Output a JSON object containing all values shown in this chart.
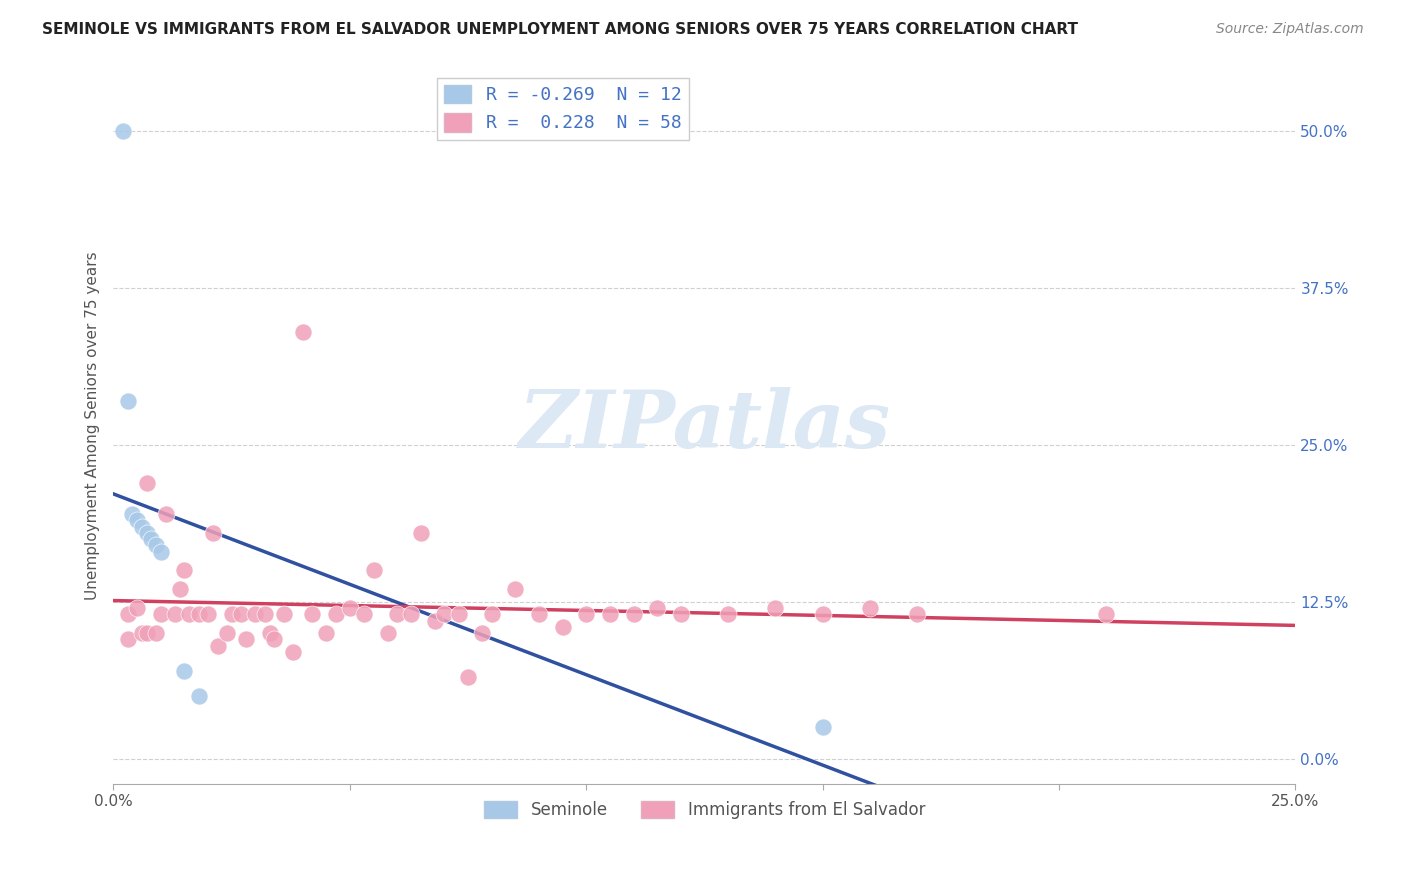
{
  "title": "SEMINOLE VS IMMIGRANTS FROM EL SALVADOR UNEMPLOYMENT AMONG SENIORS OVER 75 YEARS CORRELATION CHART",
  "source": "Source: ZipAtlas.com",
  "ylabel": "Unemployment Among Seniors over 75 years",
  "xlim": [
    0.0,
    0.25
  ],
  "ylim": [
    -0.02,
    0.55
  ],
  "yticks": [
    0.0,
    0.125,
    0.25,
    0.375,
    0.5
  ],
  "ytick_labels_right": [
    "0.0%",
    "12.5%",
    "25.0%",
    "37.5%",
    "50.0%"
  ],
  "xticks": [
    0.0,
    0.05,
    0.1,
    0.15,
    0.2,
    0.25
  ],
  "xtick_labels": [
    "0.0%",
    "",
    "",
    "",
    "",
    "25.0%"
  ],
  "seminole_R": -0.269,
  "seminole_N": 12,
  "salvador_R": 0.228,
  "salvador_N": 58,
  "seminole_color": "#a8c8e8",
  "salvador_color": "#f0a0b8",
  "seminole_line_color": "#3050a0",
  "salvador_line_color": "#d04060",
  "watermark": "ZIPatlas",
  "watermark_color": "#dce8f4",
  "seminole_x": [
    0.002,
    0.003,
    0.004,
    0.005,
    0.006,
    0.007,
    0.008,
    0.009,
    0.01,
    0.015,
    0.018,
    0.15
  ],
  "seminole_y": [
    0.5,
    0.285,
    0.195,
    0.19,
    0.185,
    0.18,
    0.175,
    0.17,
    0.165,
    0.07,
    0.05,
    0.025
  ],
  "salvador_x": [
    0.003,
    0.003,
    0.005,
    0.006,
    0.007,
    0.007,
    0.009,
    0.01,
    0.011,
    0.013,
    0.014,
    0.015,
    0.016,
    0.018,
    0.02,
    0.021,
    0.022,
    0.024,
    0.025,
    0.027,
    0.028,
    0.03,
    0.032,
    0.033,
    0.034,
    0.036,
    0.038,
    0.04,
    0.042,
    0.045,
    0.047,
    0.05,
    0.053,
    0.055,
    0.058,
    0.06,
    0.063,
    0.065,
    0.068,
    0.07,
    0.073,
    0.075,
    0.078,
    0.08,
    0.085,
    0.09,
    0.095,
    0.1,
    0.105,
    0.11,
    0.115,
    0.12,
    0.13,
    0.14,
    0.15,
    0.16,
    0.17,
    0.21
  ],
  "salvador_y": [
    0.115,
    0.095,
    0.12,
    0.1,
    0.22,
    0.1,
    0.1,
    0.115,
    0.195,
    0.115,
    0.135,
    0.15,
    0.115,
    0.115,
    0.115,
    0.18,
    0.09,
    0.1,
    0.115,
    0.115,
    0.095,
    0.115,
    0.115,
    0.1,
    0.095,
    0.115,
    0.085,
    0.34,
    0.115,
    0.1,
    0.115,
    0.12,
    0.115,
    0.15,
    0.1,
    0.115,
    0.115,
    0.18,
    0.11,
    0.115,
    0.115,
    0.065,
    0.1,
    0.115,
    0.135,
    0.115,
    0.105,
    0.115,
    0.115,
    0.115,
    0.12,
    0.115,
    0.115,
    0.12,
    0.115,
    0.12,
    0.115,
    0.115
  ]
}
